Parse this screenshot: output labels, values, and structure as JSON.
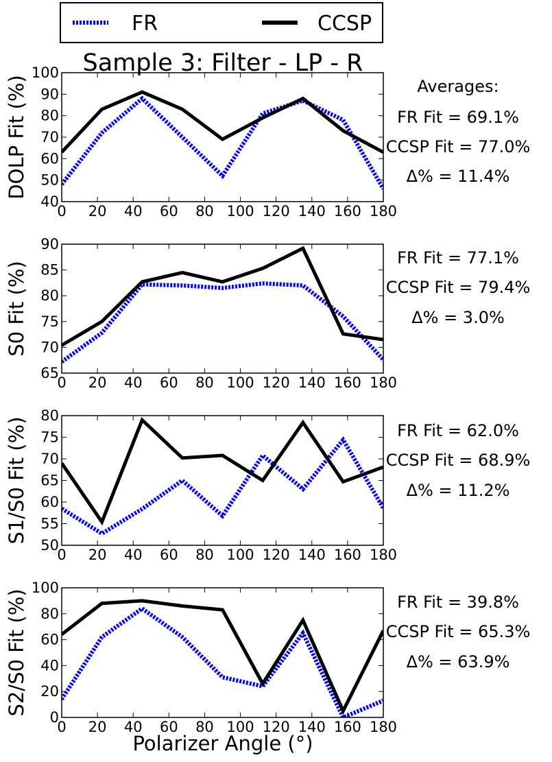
{
  "title": "Sample 3: Filter - LP - R",
  "legend": {
    "placement": "top",
    "entries": [
      {
        "label": "FR",
        "color": "#0000ff",
        "style": "dotted"
      },
      {
        "label": "CCSP",
        "color": "#000000",
        "style": "solid"
      }
    ]
  },
  "xlabel": "Polarizer Angle (°)",
  "averages_label": "Averages:",
  "chart_data": [
    {
      "type": "line",
      "ylabel": "DOLP Fit (%)",
      "x": [
        0,
        22.5,
        45,
        67.5,
        90,
        112.5,
        135,
        157.5,
        180
      ],
      "xlim": [
        0,
        180
      ],
      "ylim": [
        40,
        100
      ],
      "xticks": [
        0,
        20,
        40,
        60,
        80,
        100,
        120,
        140,
        160,
        180
      ],
      "yticks": [
        40,
        50,
        60,
        70,
        80,
        90,
        100
      ],
      "series": [
        {
          "name": "FR",
          "color": "#0000ff",
          "values": [
            48,
            72,
            88,
            70,
            52,
            81,
            87,
            78,
            46
          ]
        },
        {
          "name": "CCSP",
          "color": "#000000",
          "values": [
            63,
            83,
            91,
            83,
            69,
            79,
            88,
            73,
            63
          ]
        }
      ],
      "annotations": [
        "FR Fit = 69.1%",
        "CCSP Fit = 77.0%",
        "Δ% = 11.4%"
      ]
    },
    {
      "type": "line",
      "ylabel": "S0 Fit (%)",
      "x": [
        0,
        22.5,
        45,
        67.5,
        90,
        112.5,
        135,
        157.5,
        180
      ],
      "xlim": [
        0,
        180
      ],
      "ylim": [
        65,
        90
      ],
      "xticks": [
        0,
        20,
        40,
        60,
        80,
        100,
        120,
        140,
        160,
        180
      ],
      "yticks": [
        65,
        70,
        75,
        80,
        85,
        90
      ],
      "series": [
        {
          "name": "FR",
          "color": "#0000ff",
          "values": [
            67.2,
            72.8,
            82.2,
            82,
            81.5,
            82.4,
            82,
            76,
            67.6
          ]
        },
        {
          "name": "CCSP",
          "color": "#000000",
          "values": [
            70.4,
            75,
            82.7,
            84.5,
            82.7,
            85.3,
            89.2,
            72.6,
            71.5
          ]
        }
      ],
      "annotations": [
        "FR Fit = 77.1%",
        "CCSP Fit = 79.4%",
        "Δ% = 3.0%"
      ]
    },
    {
      "type": "line",
      "ylabel": "S1/S0 Fit (%)",
      "x": [
        0,
        22.5,
        45,
        67.5,
        90,
        112.5,
        135,
        157.5,
        180
      ],
      "xlim": [
        0,
        180
      ],
      "ylim": [
        50,
        80
      ],
      "xticks": [
        0,
        20,
        40,
        60,
        80,
        100,
        120,
        140,
        160,
        180
      ],
      "yticks": [
        50,
        55,
        60,
        65,
        70,
        75,
        80
      ],
      "series": [
        {
          "name": "FR",
          "color": "#0000ff",
          "values": [
            58.5,
            52.7,
            58.4,
            65,
            56.8,
            70.8,
            63,
            74.4,
            58.6
          ]
        },
        {
          "name": "CCSP",
          "color": "#000000",
          "values": [
            69,
            55.4,
            79,
            70.2,
            70.8,
            65,
            78.4,
            64.7,
            68.1
          ]
        }
      ],
      "annotations": [
        "FR Fit = 62.0%",
        "CCSP Fit = 68.9%",
        "Δ% = 11.2%"
      ]
    },
    {
      "type": "line",
      "ylabel": "S2/S0 Fit (%)",
      "x": [
        0,
        22.5,
        45,
        67.5,
        90,
        112.5,
        135,
        157.5,
        180
      ],
      "xlim": [
        0,
        180
      ],
      "ylim": [
        0,
        100
      ],
      "xticks": [
        0,
        20,
        40,
        60,
        80,
        100,
        120,
        140,
        160,
        180
      ],
      "yticks": [
        0,
        20,
        40,
        60,
        80,
        100
      ],
      "series": [
        {
          "name": "FR",
          "color": "#0000ff",
          "values": [
            14,
            62,
            84,
            62,
            31,
            24,
            65,
            0,
            13
          ]
        },
        {
          "name": "CCSP",
          "color": "#000000",
          "values": [
            64,
            88,
            90,
            86,
            83,
            26,
            75,
            5,
            67
          ]
        }
      ],
      "annotations": [
        "FR Fit = 39.8%",
        "CCSP Fit = 65.3%",
        "Δ% = 63.9%"
      ]
    }
  ]
}
